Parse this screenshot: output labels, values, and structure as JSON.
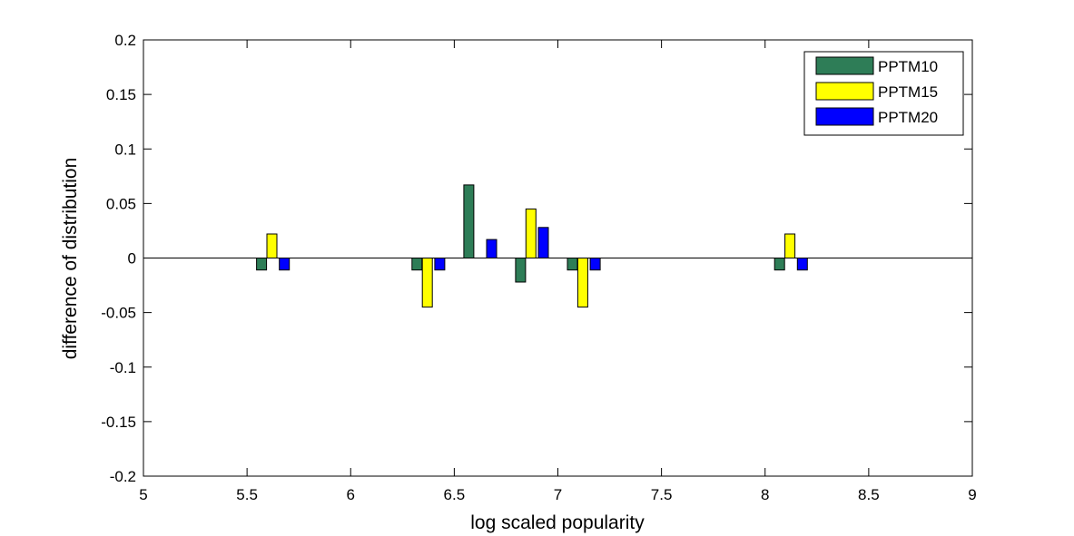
{
  "chart_data": {
    "type": "bar",
    "title": "",
    "xlabel": "log scaled popularity",
    "ylabel": "difference of distribution",
    "xlim": [
      5,
      9
    ],
    "ylim": [
      -0.2,
      0.2
    ],
    "xticks": [
      "5",
      "5.5",
      "6",
      "6.5",
      "7",
      "7.5",
      "8",
      "8.5",
      "9"
    ],
    "yticks": [
      "0.2",
      "0.15",
      "0.1",
      "0.05",
      "0",
      "-0.05",
      "-0.1",
      "-0.15",
      "-0.2"
    ],
    "legend_position": "top-right",
    "grid": false,
    "series": [
      {
        "name": "PPTM10",
        "color": "#2e7d57",
        "x": [
          5.57,
          6.32,
          6.57,
          6.82,
          7.07,
          8.07
        ],
        "values": [
          -0.011,
          -0.011,
          0.067,
          -0.022,
          -0.011,
          -0.011
        ]
      },
      {
        "name": "PPTM15",
        "color": "#ffff00",
        "x": [
          5.62,
          6.37,
          6.87,
          7.12,
          8.12
        ],
        "values": [
          0.022,
          -0.045,
          0.045,
          -0.045,
          0.022
        ]
      },
      {
        "name": "PPTM20",
        "color": "#0000ff",
        "x": [
          5.68,
          6.43,
          6.68,
          6.93,
          7.18,
          8.18
        ],
        "values": [
          -0.011,
          -0.011,
          0.017,
          0.028,
          -0.011,
          -0.011
        ]
      }
    ]
  }
}
